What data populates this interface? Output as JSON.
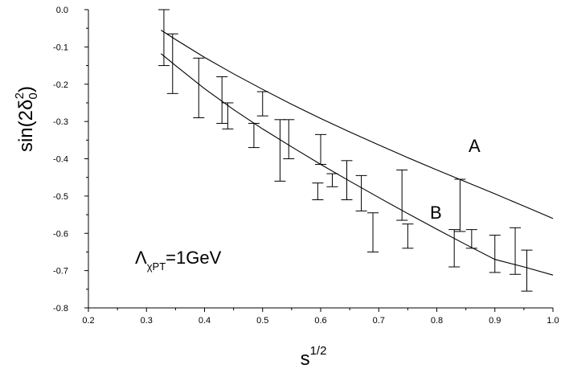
{
  "chart_data": {
    "type": "line",
    "xlabel": {
      "base": "s",
      "sup": "1/2"
    },
    "ylabel": {
      "pre": "sin(2",
      "greek": "δ",
      "sub": "0",
      "sup": "2",
      "post": ")"
    },
    "xlim": [
      0.2,
      1.0
    ],
    "ylim": [
      -0.8,
      0.0
    ],
    "xticks": [
      "0.2",
      "0.3",
      "0.4",
      "0.5",
      "0.6",
      "0.7",
      "0.8",
      "0.9",
      "1.0"
    ],
    "yticks": [
      "0.0",
      "-0.1",
      "-0.2",
      "-0.3",
      "-0.4",
      "-0.5",
      "-0.6",
      "-0.7",
      "-0.8"
    ],
    "grid": false,
    "annotation": {
      "greek": "Λ",
      "sub": "χPT",
      "rest": "=1GeV"
    },
    "series": [
      {
        "name": "A",
        "x": [
          0.325,
          0.35,
          0.4,
          0.45,
          0.5,
          0.55,
          0.6,
          0.65,
          0.7,
          0.75,
          0.8,
          0.85,
          0.9,
          0.95,
          1.0
        ],
        "y": [
          -0.055,
          -0.08,
          -0.128,
          -0.172,
          -0.214,
          -0.254,
          -0.292,
          -0.328,
          -0.363,
          -0.397,
          -0.43,
          -0.462,
          -0.494,
          -0.527,
          -0.56
        ]
      },
      {
        "name": "B",
        "x": [
          0.325,
          0.35,
          0.4,
          0.45,
          0.5,
          0.55,
          0.6,
          0.65,
          0.7,
          0.75,
          0.8,
          0.85,
          0.9,
          0.95,
          1.0
        ],
        "y": [
          -0.118,
          -0.15,
          -0.212,
          -0.268,
          -0.32,
          -0.368,
          -0.415,
          -0.46,
          -0.504,
          -0.547,
          -0.589,
          -0.63,
          -0.67,
          -0.69,
          -0.712
        ]
      }
    ],
    "error_bars": [
      {
        "x": 0.33,
        "lo": -0.15,
        "hi": 0.0
      },
      {
        "x": 0.345,
        "lo": -0.225,
        "hi": -0.065
      },
      {
        "x": 0.39,
        "lo": -0.29,
        "hi": -0.13
      },
      {
        "x": 0.43,
        "lo": -0.305,
        "hi": -0.18
      },
      {
        "x": 0.44,
        "lo": -0.32,
        "hi": -0.25
      },
      {
        "x": 0.485,
        "lo": -0.37,
        "hi": -0.305
      },
      {
        "x": 0.5,
        "lo": -0.285,
        "hi": -0.22
      },
      {
        "x": 0.53,
        "lo": -0.46,
        "hi": -0.295
      },
      {
        "x": 0.545,
        "lo": -0.4,
        "hi": -0.295
      },
      {
        "x": 0.595,
        "lo": -0.51,
        "hi": -0.465
      },
      {
        "x": 0.6,
        "lo": -0.415,
        "hi": -0.335
      },
      {
        "x": 0.62,
        "lo": -0.475,
        "hi": -0.44
      },
      {
        "x": 0.645,
        "lo": -0.51,
        "hi": -0.405
      },
      {
        "x": 0.67,
        "lo": -0.54,
        "hi": -0.445
      },
      {
        "x": 0.69,
        "lo": -0.65,
        "hi": -0.545
      },
      {
        "x": 0.74,
        "lo": -0.565,
        "hi": -0.43
      },
      {
        "x": 0.75,
        "lo": -0.64,
        "hi": -0.575
      },
      {
        "x": 0.83,
        "lo": -0.69,
        "hi": -0.59
      },
      {
        "x": 0.84,
        "lo": -0.595,
        "hi": -0.455
      },
      {
        "x": 0.86,
        "lo": -0.64,
        "hi": -0.59
      },
      {
        "x": 0.9,
        "lo": -0.705,
        "hi": -0.605
      },
      {
        "x": 0.935,
        "lo": -0.71,
        "hi": -0.585
      },
      {
        "x": 0.955,
        "lo": -0.755,
        "hi": -0.645
      }
    ]
  }
}
